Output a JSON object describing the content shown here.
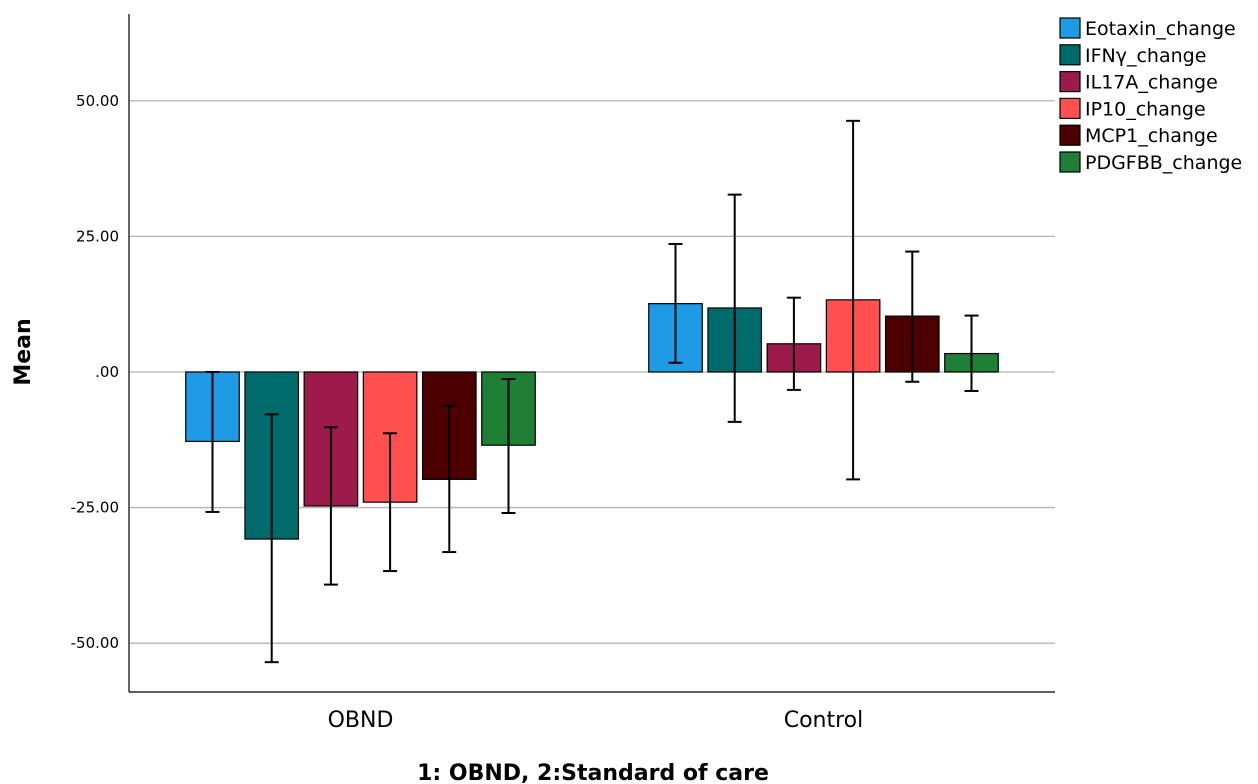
{
  "chart_data": {
    "type": "bar",
    "xlabel": "1: OBND, 2:Standard of care",
    "ylabel": "Mean",
    "categories": [
      "OBND",
      "Control"
    ],
    "ylim": [
      -59,
      66
    ],
    "yticks": [
      50,
      25,
      0,
      -25,
      -50
    ],
    "ytick_labels": [
      "50.00",
      "25.00",
      ".00",
      "-25.00",
      "-50.00"
    ],
    "grid": true,
    "legend_position": "top-right",
    "error_bars": true,
    "series": [
      {
        "name": "Eotaxin_change",
        "color": "#1f9be6",
        "values": [
          -12.8,
          12.6
        ],
        "err_low": [
          -25.8,
          1.7
        ],
        "err_high": [
          0.0,
          23.6
        ]
      },
      {
        "name": "IFNγ_change",
        "color": "#006b6b",
        "values": [
          -30.8,
          11.8
        ],
        "err_low": [
          -53.5,
          -9.2
        ],
        "err_high": [
          -7.8,
          32.7
        ]
      },
      {
        "name": "IL17A_change",
        "color": "#9c1b4b",
        "values": [
          -24.7,
          5.2
        ],
        "err_low": [
          -39.2,
          -3.3
        ],
        "err_high": [
          -10.2,
          13.7
        ]
      },
      {
        "name": "IP10_change",
        "color": "#ff4f4f",
        "values": [
          -24.0,
          13.3
        ],
        "err_low": [
          -36.7,
          -19.8
        ],
        "err_high": [
          -11.3,
          46.3
        ]
      },
      {
        "name": "MCP1_change",
        "color": "#4d0000",
        "values": [
          -19.8,
          10.3
        ],
        "err_low": [
          -33.2,
          -1.8
        ],
        "err_high": [
          -6.2,
          22.2
        ]
      },
      {
        "name": "PDGFBB_change",
        "color": "#1e7f35",
        "values": [
          -13.5,
          3.4
        ],
        "err_low": [
          -26.0,
          -3.5
        ],
        "err_high": [
          -1.3,
          10.4
        ]
      }
    ]
  }
}
